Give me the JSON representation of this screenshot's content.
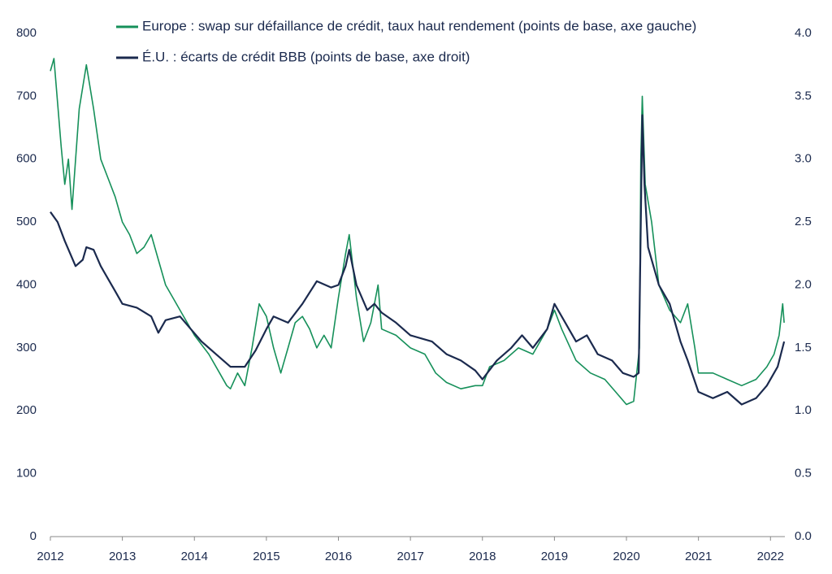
{
  "chart_data": {
    "type": "line",
    "xlim": [
      2012,
      2022.2
    ],
    "xticks": [
      2012,
      2013,
      2014,
      2015,
      2016,
      2017,
      2018,
      2019,
      2020,
      2021,
      2022
    ],
    "ylim": [
      0,
      800
    ],
    "yticks": [
      0,
      100,
      200,
      300,
      400,
      500,
      600,
      700,
      800
    ],
    "y2lim": [
      0,
      4
    ],
    "y2ticks": [
      {
        "value": 0,
        "label": "0.0"
      },
      0.5,
      {
        "value": 1,
        "label": "1.0"
      },
      1.5,
      {
        "value": 2,
        "label": "2.0"
      },
      2.5,
      {
        "value": 3,
        "label": "3.0"
      },
      3.5,
      {
        "value": 4,
        "label": "4.0"
      }
    ],
    "legend": "top",
    "series": [
      {
        "name": "Europe : swap sur défaillance de crédit, taux haut rendement (points de base, axe gauche)",
        "color": "#16905a",
        "axis": "y",
        "x": [
          2012.0,
          2012.05,
          2012.15,
          2012.2,
          2012.25,
          2012.3,
          2012.4,
          2012.5,
          2012.6,
          2012.7,
          2012.8,
          2012.9,
          2013.0,
          2013.1,
          2013.2,
          2013.3,
          2013.4,
          2013.5,
          2013.6,
          2013.7,
          2013.8,
          2013.9,
          2014.0,
          2014.2,
          2014.35,
          2014.45,
          2014.5,
          2014.6,
          2014.7,
          2014.8,
          2014.9,
          2015.0,
          2015.1,
          2015.2,
          2015.3,
          2015.4,
          2015.5,
          2015.6,
          2015.7,
          2015.8,
          2015.9,
          2016.0,
          2016.1,
          2016.15,
          2016.25,
          2016.35,
          2016.45,
          2016.55,
          2016.6,
          2016.8,
          2017.0,
          2017.2,
          2017.35,
          2017.5,
          2017.7,
          2017.9,
          2018.0,
          2018.1,
          2018.3,
          2018.5,
          2018.7,
          2018.9,
          2019.0,
          2019.1,
          2019.3,
          2019.5,
          2019.7,
          2019.85,
          2020.0,
          2020.1,
          2020.18,
          2020.2,
          2020.22,
          2020.26,
          2020.35,
          2020.45,
          2020.6,
          2020.75,
          2020.85,
          2020.95,
          2021.0,
          2021.2,
          2021.4,
          2021.6,
          2021.8,
          2021.95,
          2022.05,
          2022.12,
          2022.17,
          2022.19
        ],
        "values": [
          740,
          760,
          620,
          560,
          600,
          520,
          680,
          750,
          680,
          600,
          570,
          540,
          500,
          480,
          450,
          460,
          480,
          440,
          400,
          380,
          360,
          340,
          320,
          290,
          260,
          240,
          235,
          260,
          240,
          300,
          370,
          350,
          300,
          260,
          300,
          340,
          350,
          330,
          300,
          320,
          300,
          380,
          450,
          480,
          380,
          310,
          340,
          400,
          330,
          320,
          300,
          290,
          260,
          245,
          235,
          240,
          240,
          270,
          280,
          300,
          290,
          330,
          360,
          330,
          280,
          260,
          250,
          230,
          210,
          215,
          300,
          600,
          700,
          560,
          500,
          400,
          360,
          340,
          370,
          300,
          260,
          260,
          250,
          240,
          250,
          270,
          290,
          320,
          370,
          340
        ]
      },
      {
        "name": "É.U. : écarts de crédit BBB (points de base, axe droit)",
        "color": "#1b2a4e",
        "axis": "y2",
        "x": [
          2012.0,
          2012.1,
          2012.2,
          2012.35,
          2012.45,
          2012.5,
          2012.6,
          2012.7,
          2012.8,
          2012.9,
          2013.0,
          2013.2,
          2013.4,
          2013.5,
          2013.6,
          2013.8,
          2013.95,
          2014.1,
          2014.3,
          2014.5,
          2014.7,
          2014.85,
          2015.0,
          2015.1,
          2015.3,
          2015.5,
          2015.7,
          2015.9,
          2016.0,
          2016.1,
          2016.15,
          2016.25,
          2016.4,
          2016.5,
          2016.6,
          2016.8,
          2017.0,
          2017.3,
          2017.5,
          2017.7,
          2017.9,
          2018.0,
          2018.2,
          2018.4,
          2018.55,
          2018.7,
          2018.9,
          2019.0,
          2019.1,
          2019.3,
          2019.45,
          2019.6,
          2019.8,
          2019.95,
          2020.1,
          2020.17,
          2020.2,
          2020.22,
          2020.25,
          2020.3,
          2020.45,
          2020.6,
          2020.75,
          2020.85,
          2021.0,
          2021.2,
          2021.4,
          2021.6,
          2021.8,
          2021.95,
          2022.1,
          2022.19
        ],
        "values": [
          2.58,
          2.5,
          2.35,
          2.15,
          2.2,
          2.3,
          2.28,
          2.15,
          2.05,
          1.95,
          1.85,
          1.82,
          1.75,
          1.62,
          1.72,
          1.75,
          1.65,
          1.55,
          1.45,
          1.35,
          1.35,
          1.48,
          1.65,
          1.75,
          1.7,
          1.85,
          2.03,
          1.98,
          2.0,
          2.15,
          2.28,
          2.0,
          1.8,
          1.85,
          1.78,
          1.7,
          1.6,
          1.55,
          1.45,
          1.4,
          1.32,
          1.25,
          1.4,
          1.5,
          1.6,
          1.5,
          1.65,
          1.85,
          1.75,
          1.55,
          1.6,
          1.45,
          1.4,
          1.3,
          1.27,
          1.3,
          2.5,
          3.35,
          2.8,
          2.3,
          2.0,
          1.85,
          1.55,
          1.4,
          1.15,
          1.1,
          1.15,
          1.05,
          1.1,
          1.2,
          1.35,
          1.55
        ]
      }
    ]
  }
}
